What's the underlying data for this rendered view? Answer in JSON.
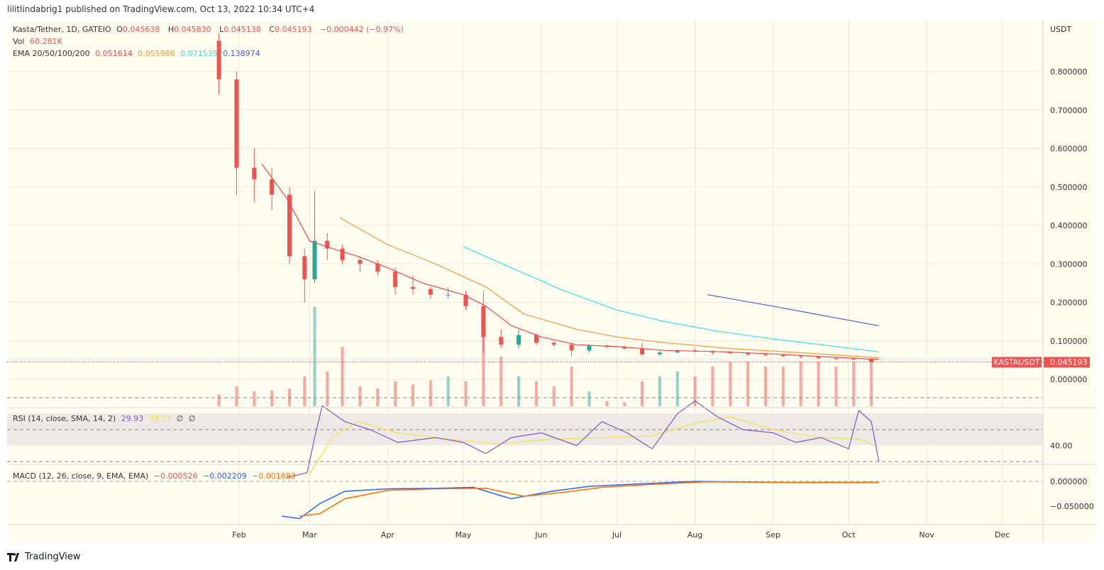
{
  "header": {
    "published": "lilitlindabrig1 published on TradingView.com, Oct 13, 2022 10:34 UTC+4"
  },
  "legend": {
    "symbol": "Kasta/Tether, 1D, GATEIO",
    "o_label": "O",
    "o": "0.045638",
    "h_label": "H",
    "h": "0.045830",
    "l_label": "L",
    "l": "0.045138",
    "c_label": "C",
    "c": "0.045193",
    "change": "−0.000442 (−0.97%)",
    "vol_label": "Vol",
    "vol": "60.281K",
    "ema_label": "EMA 20/50/100/200",
    "ema20": "0.051614",
    "ema50": "0.055986",
    "ema100": "0.071535",
    "ema200": "0.138974",
    "rsi_label": "RSI (14, close, SMA, 14, 2)",
    "rsi": "29.93",
    "rsi_sma": "39.13",
    "rsi_na1": "∅",
    "rsi_na2": "∅",
    "macd_label": "MACD (12, 26, close, 9, EMA, EMA)",
    "macd_hist": "−0.000526",
    "macd": "−0.002209",
    "macd_signal": "−0.001683"
  },
  "price_axis": {
    "currency": "USDT",
    "ticks": [
      "0.800000",
      "0.700000",
      "0.600000",
      "0.500000",
      "0.400000",
      "0.300000",
      "0.200000",
      "0.100000",
      "0.000000"
    ],
    "last_symbol": "KASTAUSDT",
    "last_price": "0.045193"
  },
  "rsi_axis": {
    "ticks": [
      "40.00"
    ]
  },
  "macd_axis": {
    "ticks": [
      "0.000000",
      "−0.050000"
    ]
  },
  "time_axis": {
    "ticks": [
      "Feb",
      "Mar",
      "Apr",
      "May",
      "Jun",
      "Jul",
      "Aug",
      "Sep",
      "Oct",
      "Nov",
      "Dec"
    ]
  },
  "footer": {
    "brand": "TradingView"
  },
  "colors": {
    "background": "#fffdf0",
    "up": "#26a69a",
    "down": "#ef5350",
    "ema20": "#f04848",
    "ema50": "#ff9632",
    "ema100": "#33e6e6",
    "ema200": "#4a5cf0",
    "rsi": "#7e57c2",
    "rsi_sma": "#f5e04a",
    "macd": "#2962ff",
    "macd_signal": "#ff6d00"
  },
  "chart_data": {
    "type": "candlestick",
    "title": "Kasta/Tether, 1D, GATEIO",
    "ylabel": "USDT",
    "ylim": [
      -0.07,
      0.93
    ],
    "xlim": [
      "2022-01-10",
      "2022-12-20"
    ],
    "grid": true,
    "candles_columns": [
      "date",
      "open",
      "high",
      "low",
      "close",
      "volume_k"
    ],
    "candles": [
      [
        "2022-01-24",
        0.88,
        0.9,
        0.74,
        0.78,
        120
      ],
      [
        "2022-01-31",
        0.78,
        0.8,
        0.48,
        0.55,
        200
      ],
      [
        "2022-02-07",
        0.55,
        0.6,
        0.46,
        0.52,
        150
      ],
      [
        "2022-02-14",
        0.52,
        0.55,
        0.44,
        0.48,
        160
      ],
      [
        "2022-02-21",
        0.48,
        0.5,
        0.3,
        0.32,
        180
      ],
      [
        "2022-02-27",
        0.32,
        0.34,
        0.2,
        0.26,
        300
      ],
      [
        "2022-03-03",
        0.26,
        0.49,
        0.25,
        0.36,
        1000
      ],
      [
        "2022-03-08",
        0.36,
        0.38,
        0.31,
        0.34,
        350
      ],
      [
        "2022-03-14",
        0.34,
        0.35,
        0.3,
        0.31,
        600
      ],
      [
        "2022-03-21",
        0.31,
        0.32,
        0.28,
        0.3,
        200
      ],
      [
        "2022-03-28",
        0.3,
        0.31,
        0.27,
        0.28,
        180
      ],
      [
        "2022-04-04",
        0.28,
        0.29,
        0.22,
        0.24,
        250
      ],
      [
        "2022-04-11",
        0.24,
        0.27,
        0.22,
        0.235,
        220
      ],
      [
        "2022-04-18",
        0.235,
        0.24,
        0.21,
        0.22,
        260
      ],
      [
        "2022-04-25",
        0.22,
        0.24,
        0.21,
        0.22,
        300
      ],
      [
        "2022-05-02",
        0.22,
        0.23,
        0.18,
        0.19,
        250
      ],
      [
        "2022-05-09",
        0.19,
        0.23,
        0.07,
        0.11,
        700
      ],
      [
        "2022-05-16",
        0.11,
        0.13,
        0.08,
        0.09,
        500
      ],
      [
        "2022-05-23",
        0.09,
        0.13,
        0.08,
        0.115,
        300
      ],
      [
        "2022-05-30",
        0.115,
        0.12,
        0.09,
        0.095,
        250
      ],
      [
        "2022-06-06",
        0.095,
        0.1,
        0.085,
        0.09,
        200
      ],
      [
        "2022-06-13",
        0.09,
        0.095,
        0.06,
        0.075,
        400
      ],
      [
        "2022-06-20",
        0.075,
        0.09,
        0.07,
        0.088,
        150
      ],
      [
        "2022-06-27",
        0.088,
        0.09,
        0.08,
        0.085,
        50
      ],
      [
        "2022-07-04",
        0.085,
        0.088,
        0.078,
        0.08,
        40
      ],
      [
        "2022-07-11",
        0.08,
        0.095,
        0.06,
        0.065,
        250
      ],
      [
        "2022-07-18",
        0.065,
        0.075,
        0.06,
        0.07,
        300
      ],
      [
        "2022-07-25",
        0.07,
        0.078,
        0.068,
        0.075,
        350
      ],
      [
        "2022-08-01",
        0.075,
        0.08,
        0.07,
        0.072,
        300
      ],
      [
        "2022-08-08",
        0.072,
        0.075,
        0.065,
        0.07,
        400
      ],
      [
        "2022-08-15",
        0.07,
        0.074,
        0.065,
        0.068,
        450
      ],
      [
        "2022-08-22",
        0.068,
        0.07,
        0.06,
        0.065,
        450
      ],
      [
        "2022-08-29",
        0.065,
        0.068,
        0.06,
        0.063,
        400
      ],
      [
        "2022-09-05",
        0.063,
        0.066,
        0.058,
        0.06,
        400
      ],
      [
        "2022-09-12",
        0.06,
        0.064,
        0.055,
        0.058,
        450
      ],
      [
        "2022-09-19",
        0.058,
        0.06,
        0.052,
        0.055,
        450
      ],
      [
        "2022-09-26",
        0.055,
        0.058,
        0.05,
        0.053,
        400
      ],
      [
        "2022-10-03",
        0.053,
        0.058,
        0.05,
        0.052,
        450
      ],
      [
        "2022-10-10",
        0.052,
        0.055,
        0.045,
        0.0452,
        450
      ]
    ],
    "ema": [
      {
        "name": "EMA 20",
        "color": "#f04848",
        "points": [
          [
            "2022-02-10",
            0.56
          ],
          [
            "2022-02-20",
            0.47
          ],
          [
            "2022-03-01",
            0.36
          ],
          [
            "2022-03-10",
            0.34
          ],
          [
            "2022-03-20",
            0.32
          ],
          [
            "2022-04-01",
            0.29
          ],
          [
            "2022-04-15",
            0.25
          ],
          [
            "2022-05-01",
            0.22
          ],
          [
            "2022-05-10",
            0.19
          ],
          [
            "2022-05-20",
            0.14
          ],
          [
            "2022-06-01",
            0.11
          ],
          [
            "2022-06-15",
            0.09
          ],
          [
            "2022-07-01",
            0.085
          ],
          [
            "2022-07-20",
            0.075
          ],
          [
            "2022-08-10",
            0.072
          ],
          [
            "2022-09-01",
            0.066
          ],
          [
            "2022-09-20",
            0.059
          ],
          [
            "2022-10-13",
            0.0516
          ]
        ]
      },
      {
        "name": "EMA 50",
        "color": "#ff9632",
        "points": [
          [
            "2022-03-13",
            0.42
          ],
          [
            "2022-04-01",
            0.35
          ],
          [
            "2022-04-20",
            0.3
          ],
          [
            "2022-05-10",
            0.24
          ],
          [
            "2022-05-25",
            0.17
          ],
          [
            "2022-06-15",
            0.13
          ],
          [
            "2022-07-01",
            0.11
          ],
          [
            "2022-07-20",
            0.095
          ],
          [
            "2022-08-15",
            0.08
          ],
          [
            "2022-09-15",
            0.068
          ],
          [
            "2022-10-13",
            0.056
          ]
        ]
      },
      {
        "name": "EMA 100",
        "color": "#33e6e6",
        "points": [
          [
            "2022-05-01",
            0.345
          ],
          [
            "2022-05-20",
            0.29
          ],
          [
            "2022-06-10",
            0.23
          ],
          [
            "2022-07-01",
            0.18
          ],
          [
            "2022-07-20",
            0.15
          ],
          [
            "2022-08-10",
            0.125
          ],
          [
            "2022-09-01",
            0.105
          ],
          [
            "2022-09-20",
            0.09
          ],
          [
            "2022-10-13",
            0.0715
          ]
        ]
      },
      {
        "name": "EMA 200",
        "color": "#4a5cf0",
        "points": [
          [
            "2022-08-06",
            0.22
          ],
          [
            "2022-09-01",
            0.19
          ],
          [
            "2022-10-13",
            0.139
          ]
        ]
      }
    ],
    "rsi": {
      "ylim": [
        10,
        80
      ],
      "bands": [
        70,
        50,
        30
      ],
      "line": [
        [
          "2022-02-20",
          20
        ],
        [
          "2022-02-28",
          23
        ],
        [
          "2022-03-03",
          45
        ],
        [
          "2022-03-06",
          65
        ],
        [
          "2022-03-15",
          55
        ],
        [
          "2022-03-25",
          50
        ],
        [
          "2022-04-05",
          42
        ],
        [
          "2022-04-20",
          45
        ],
        [
          "2022-05-01",
          42
        ],
        [
          "2022-05-10",
          35
        ],
        [
          "2022-05-20",
          45
        ],
        [
          "2022-06-01",
          48
        ],
        [
          "2022-06-15",
          40
        ],
        [
          "2022-06-25",
          55
        ],
        [
          "2022-07-05",
          48
        ],
        [
          "2022-07-15",
          38
        ],
        [
          "2022-07-25",
          60
        ],
        [
          "2022-08-01",
          68
        ],
        [
          "2022-08-10",
          58
        ],
        [
          "2022-08-20",
          50
        ],
        [
          "2022-09-01",
          48
        ],
        [
          "2022-09-10",
          42
        ],
        [
          "2022-09-20",
          45
        ],
        [
          "2022-10-01",
          38
        ],
        [
          "2022-10-05",
          62
        ],
        [
          "2022-10-10",
          55
        ],
        [
          "2022-10-13",
          29.93
        ]
      ],
      "sma": [
        [
          "2022-03-01",
          22
        ],
        [
          "2022-03-10",
          45
        ],
        [
          "2022-03-20",
          55
        ],
        [
          "2022-04-05",
          48
        ],
        [
          "2022-04-25",
          44
        ],
        [
          "2022-05-15",
          41
        ],
        [
          "2022-06-05",
          44
        ],
        [
          "2022-06-25",
          45
        ],
        [
          "2022-07-15",
          46
        ],
        [
          "2022-08-01",
          54
        ],
        [
          "2022-08-15",
          58
        ],
        [
          "2022-09-01",
          50
        ],
        [
          "2022-09-20",
          45
        ],
        [
          "2022-10-05",
          44
        ],
        [
          "2022-10-13",
          39.13
        ]
      ]
    },
    "macd": {
      "ylim": [
        -0.088,
        0.02
      ],
      "macd": [
        [
          "2022-02-18",
          -0.07
        ],
        [
          "2022-02-25",
          -0.075
        ],
        [
          "2022-03-05",
          -0.045
        ],
        [
          "2022-03-15",
          -0.02
        ],
        [
          "2022-04-01",
          -0.015
        ],
        [
          "2022-04-20",
          -0.014
        ],
        [
          "2022-05-05",
          -0.012
        ],
        [
          "2022-05-20",
          -0.035
        ],
        [
          "2022-06-05",
          -0.02
        ],
        [
          "2022-06-20",
          -0.01
        ],
        [
          "2022-07-10",
          -0.005
        ],
        [
          "2022-08-01",
          0
        ],
        [
          "2022-09-01",
          -0.002
        ],
        [
          "2022-10-13",
          -0.0022
        ]
      ],
      "signal": [
        [
          "2022-02-25",
          -0.07
        ],
        [
          "2022-03-05",
          -0.065
        ],
        [
          "2022-03-15",
          -0.035
        ],
        [
          "2022-04-01",
          -0.018
        ],
        [
          "2022-04-20",
          -0.015
        ],
        [
          "2022-05-10",
          -0.014
        ],
        [
          "2022-05-25",
          -0.03
        ],
        [
          "2022-06-10",
          -0.022
        ],
        [
          "2022-06-25",
          -0.012
        ],
        [
          "2022-07-15",
          -0.006
        ],
        [
          "2022-08-05",
          -0.001
        ],
        [
          "2022-09-05",
          -0.002
        ],
        [
          "2022-10-13",
          -0.0017
        ]
      ]
    }
  }
}
